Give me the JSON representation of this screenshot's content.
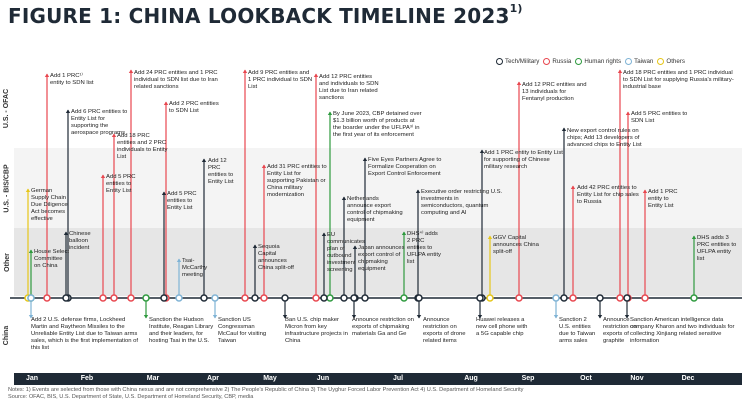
{
  "title": "FIGURE 1: CHINA LOOKBACK TIMELINE 2023",
  "title_note": "1)",
  "legend": [
    {
      "key": "tech",
      "label": "Tech/Military",
      "color": "#1f2a36"
    },
    {
      "key": "russia",
      "label": "Russia",
      "color": "#e8474f"
    },
    {
      "key": "human",
      "label": "Human rights",
      "color": "#2e9a3e"
    },
    {
      "key": "taiwan",
      "label": "Taiwan",
      "color": "#7fb3d5"
    },
    {
      "key": "others",
      "label": "Others",
      "color": "#e6c619"
    }
  ],
  "rows": [
    {
      "key": "ofac",
      "label": "U.S. - OFAC"
    },
    {
      "key": "bis",
      "label": "U.S. - BIS/CBP"
    },
    {
      "key": "other",
      "label": "Other"
    },
    {
      "key": "china",
      "label": "China"
    }
  ],
  "months": [
    "Jan",
    "Feb",
    "Mar",
    "Apr",
    "May",
    "Jun",
    "Jul",
    "Aug",
    "Sep",
    "Oct",
    "Nov",
    "Dec"
  ],
  "events": [
    {
      "id": "e1",
      "cat": "russia",
      "text": "Add 1 PRC¹⁾ entity to SDN list"
    },
    {
      "id": "e2",
      "cat": "tech",
      "text": "Add 6 PRC entities to Entity List for supporting the aerospace programs"
    },
    {
      "id": "e3",
      "cat": "others",
      "text": "German Supply Chain Due Diligence Act becomes effective"
    },
    {
      "id": "e4",
      "cat": "tech",
      "text": "Chinese balloon incident"
    },
    {
      "id": "e5",
      "cat": "human",
      "text": "House Select Committee on China"
    },
    {
      "id": "e6",
      "cat": "russia",
      "text": "Add 18 PRC entities and 2 PRC individuals to Entity List"
    },
    {
      "id": "e7",
      "cat": "russia",
      "text": "Add 5 PRC entities to Entity List"
    },
    {
      "id": "e8",
      "cat": "russia",
      "text": "Add 24 PRC entities and 1 PRC individual to SDN list due to Iran related sanctions"
    },
    {
      "id": "e9",
      "cat": "russia",
      "text": "Add 2 PRC entities to SDN List"
    },
    {
      "id": "e10",
      "cat": "tech",
      "text": "Add 5 PRC entities to Entity List"
    },
    {
      "id": "e11",
      "cat": "tech",
      "text": "Add 12 PRC entities to Entity List"
    },
    {
      "id": "e12",
      "cat": "taiwan",
      "text": "Tsai-McCarthy meeting"
    },
    {
      "id": "e13",
      "cat": "russia",
      "text": "Add 9 PRC entities and 1 PRC individual to SDN List"
    },
    {
      "id": "e14",
      "cat": "tech",
      "text": "Sequoia Capital announces China split-off"
    },
    {
      "id": "e15",
      "cat": "russia",
      "text": "Add 12 PRC entities and individuals to SDN List due to Iran related sanctions"
    },
    {
      "id": "e16",
      "cat": "human",
      "text": "By June 2023, CBP detained over $1.3 billion worth of products at the boarder under the UFLPA³⁾ in the first year of its enforcement"
    },
    {
      "id": "e17",
      "cat": "russia",
      "text": "Add 31 PRC entities to Entity List for supporting Pakistan or China military modernization"
    },
    {
      "id": "e18",
      "cat": "tech",
      "text": "EU communicates plan of outbound investment screening"
    },
    {
      "id": "e19",
      "cat": "tech",
      "text": "Five Eyes Partners Agree to Formalize Cooperation on Export Control Enforcement"
    },
    {
      "id": "e20",
      "cat": "tech",
      "text": "Netherlands announce export control of chipmaking equipment"
    },
    {
      "id": "e21",
      "cat": "tech",
      "text": "Japan announces export control of chipmaking equipment"
    },
    {
      "id": "e22",
      "cat": "tech",
      "text": "Executive order restricting U.S. investments in semiconductors, quantum computing and AI"
    },
    {
      "id": "e23",
      "cat": "human",
      "text": "DHS⁴⁾ adds 2 PRC entities to UFLPA entity list"
    },
    {
      "id": "e24",
      "cat": "tech",
      "text": "Add 1 PRC entity to Entity List for supporting of Chinese military research"
    },
    {
      "id": "e25",
      "cat": "others",
      "text": "GGV Capital announces China split-off"
    },
    {
      "id": "e26",
      "cat": "russia",
      "text": "Add 12 PRC entities and 13 individuals for Fentanyl production"
    },
    {
      "id": "e27",
      "cat": "tech",
      "text": "New export control rules on chips; Add 13 developers of advanced chips to Entity List"
    },
    {
      "id": "e28",
      "cat": "russia",
      "text": "Add 42 PRC entities to Entity List for chip sales to Russia"
    },
    {
      "id": "e29",
      "cat": "russia",
      "text": "Add 18 PRC entities and 1 PRC individual to SDN List for supplying Russia's military-industrial base"
    },
    {
      "id": "e30",
      "cat": "russia",
      "text": "Add 5 PRC entities to SDN List"
    },
    {
      "id": "e31",
      "cat": "russia",
      "text": "Add 1 PRC entity to Entity List"
    },
    {
      "id": "e32",
      "cat": "human",
      "text": "DHS adds 3 PRC entities to UFLPA entity list"
    },
    {
      "id": "e33",
      "cat": "taiwan",
      "text": "Add 2 U.S. defense firms, Lockheed Martin and Raytheon Missiles to the Unreliable Entity List due to Taiwan arms sales, which is the first implementation of this list"
    },
    {
      "id": "e34",
      "cat": "human",
      "text": "Sanction the Hudson Institute, Reagan Library and their leaders, for hosting Tsai in the U.S."
    },
    {
      "id": "e35",
      "cat": "taiwan",
      "text": "Sanction US Congressman McCaul for visiting Taiwan"
    },
    {
      "id": "e36",
      "cat": "tech",
      "text": "Ban U.S. chip maker Micron from key infrastructure projects in China"
    },
    {
      "id": "e37",
      "cat": "tech",
      "text": "Announce restriction on exports of chipmaking materials Ga and Ge"
    },
    {
      "id": "e38",
      "cat": "tech",
      "text": "Announce restriction on exports of drone related items"
    },
    {
      "id": "e39",
      "cat": "tech",
      "text": "Huawei releases a new cell phone with a 5G capable chip"
    },
    {
      "id": "e40",
      "cat": "taiwan",
      "text": "Sanction 2 U.S. entities due to Taiwan arms sales"
    },
    {
      "id": "e41",
      "cat": "tech",
      "text": "Announce restriction on exports of graphite"
    },
    {
      "id": "e42",
      "cat": "tech",
      "text": "Sanction American intelligence data company Kharon and two individuals for collecting Xinjiang related sensitive information"
    }
  ],
  "notes": [
    "Notes: 1) Events are selected from those with China nexus and are not comprehensive   2) The People's Republic of China   3) The Uyghur Forced Labor Prevention Act   4) U.S. Department of Homeland Security",
    "Source: OFAC, BIS, U.S. Department of State, U.S. Department of Homeland Security, CBP, media"
  ]
}
